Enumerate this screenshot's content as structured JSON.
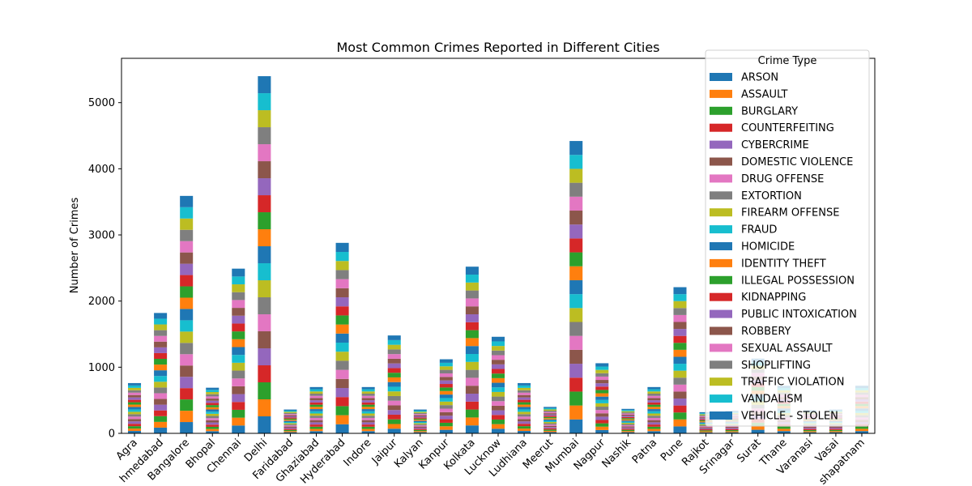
{
  "chart_data": {
    "type": "bar",
    "stacked": true,
    "title": "Most Common Crimes Reported in Different Cities",
    "xlabel": "",
    "ylabel": "Number of Crimes",
    "ylim": [
      0,
      5670
    ],
    "yticks": [
      0,
      1000,
      2000,
      3000,
      4000,
      5000
    ],
    "grid": false,
    "legend_title": "Crime Type",
    "legend_position": "top-right",
    "categories": [
      "Agra",
      "Ahmedabad",
      "Bangalore",
      "Bhopal",
      "Chennai",
      "Delhi",
      "Faridabad",
      "Ghaziabad",
      "Hyderabad",
      "Indore",
      "Jaipur",
      "Kalyan",
      "Kanpur",
      "Kolkata",
      "Lucknow",
      "Ludhiana",
      "Meerut",
      "Mumbai",
      "Nagpur",
      "Nashik",
      "Patna",
      "Pune",
      "Rajkot",
      "Srinagar",
      "Surat",
      "Thane",
      "Varanasi",
      "Vasai",
      "Visakhapatnam"
    ],
    "category_labels_display": [
      "Agra",
      "hmedabad",
      "Bangalore",
      "Bhopal",
      "Chennai",
      "Delhi",
      "Faridabad",
      "Ghaziabad",
      "Hyderabad",
      "Indore",
      "Jaipur",
      "Kalyan",
      "Kanpur",
      "Kolkata",
      "Lucknow",
      "Ludhiana",
      "Meerut",
      "Mumbai",
      "Nagpur",
      "Nashik",
      "Patna",
      "Pune",
      "Rajkot",
      "Srinagar",
      "Surat",
      "Thane",
      "Varanasi",
      "Vasai",
      "shapatnam"
    ],
    "totals": [
      760,
      1820,
      3590,
      690,
      2490,
      5400,
      360,
      700,
      2880,
      700,
      1480,
      360,
      1120,
      2520,
      1460,
      760,
      400,
      4420,
      1060,
      370,
      700,
      2210,
      320,
      340,
      1130,
      720,
      350,
      360,
      720
    ],
    "series": [
      {
        "name": "ARSON",
        "color": "#1f77b4"
      },
      {
        "name": "ASSAULT",
        "color": "#ff7f0e"
      },
      {
        "name": "BURGLARY",
        "color": "#2ca02c"
      },
      {
        "name": "COUNTERFEITING",
        "color": "#d62728"
      },
      {
        "name": "CYBERCRIME",
        "color": "#9467bd"
      },
      {
        "name": "DOMESTIC VIOLENCE",
        "color": "#8c564b"
      },
      {
        "name": "DRUG OFFENSE",
        "color": "#e377c2"
      },
      {
        "name": "EXTORTION",
        "color": "#7f7f7f"
      },
      {
        "name": "FIREARM OFFENSE",
        "color": "#bcbd22"
      },
      {
        "name": "FRAUD",
        "color": "#17becf"
      },
      {
        "name": "HOMICIDE",
        "color": "#1f77b4"
      },
      {
        "name": "IDENTITY THEFT",
        "color": "#ff7f0e"
      },
      {
        "name": "ILLEGAL POSSESSION",
        "color": "#2ca02c"
      },
      {
        "name": "KIDNAPPING",
        "color": "#d62728"
      },
      {
        "name": "PUBLIC INTOXICATION",
        "color": "#9467bd"
      },
      {
        "name": "ROBBERY",
        "color": "#8c564b"
      },
      {
        "name": "SEXUAL ASSAULT",
        "color": "#e377c2"
      },
      {
        "name": "SHOPLIFTING",
        "color": "#7f7f7f"
      },
      {
        "name": "TRAFFIC VIOLATION",
        "color": "#bcbd22"
      },
      {
        "name": "VANDALISM",
        "color": "#17becf"
      },
      {
        "name": "VEHICLE - STOLEN",
        "color": "#1f77b4"
      }
    ]
  }
}
